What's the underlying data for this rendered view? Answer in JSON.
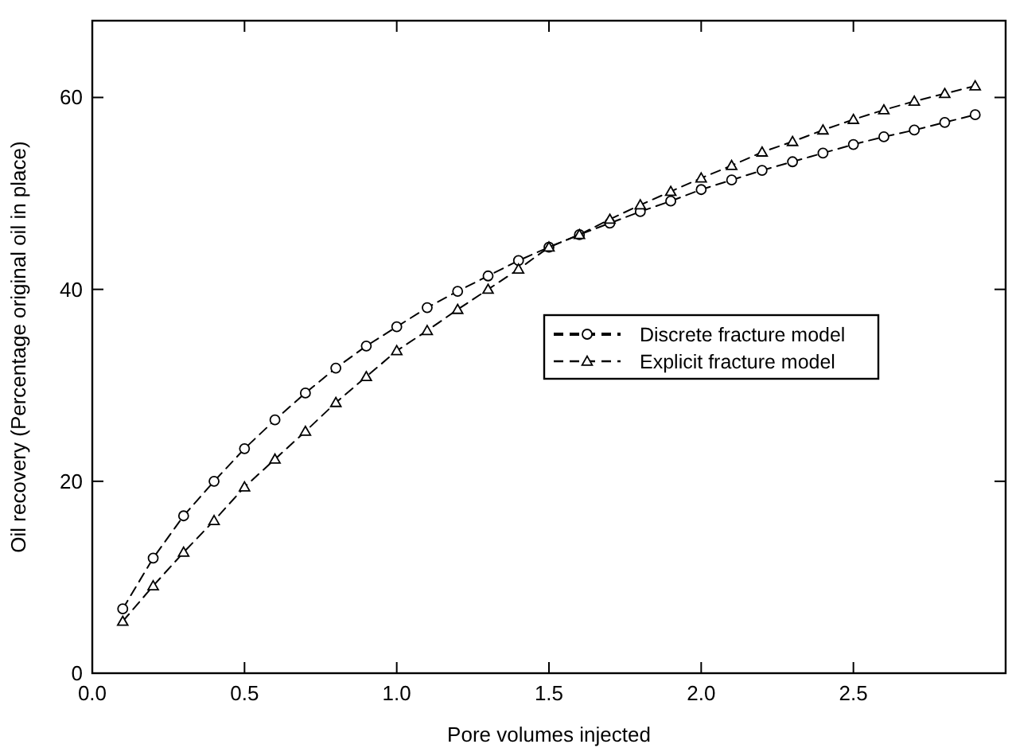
{
  "chart_data": {
    "type": "line",
    "xlabel": "Pore volumes injected",
    "ylabel": "Oil recovery (Percentage original oil in place)",
    "xlim": [
      0,
      3.0
    ],
    "ylim": [
      0,
      68
    ],
    "xticks": [
      {
        "value": 0,
        "label": "0.0"
      },
      {
        "value": 0.5,
        "label": "0.5"
      },
      {
        "value": 1,
        "label": "1.0"
      },
      {
        "value": 1.5,
        "label": "1.5"
      },
      {
        "value": 2,
        "label": "2.0"
      },
      {
        "value": 2.5,
        "label": "2.5"
      }
    ],
    "yticks": [
      0,
      20,
      40,
      60
    ],
    "grid": false,
    "legend": "right",
    "line_style": "dashed",
    "x": [
      0.1,
      0.2,
      0.3,
      0.4,
      0.5,
      0.6,
      0.7,
      0.8,
      0.9,
      1.0,
      1.1,
      1.2,
      1.3,
      1.4,
      1.5,
      1.6,
      1.7,
      1.8,
      1.9,
      2.0,
      2.1,
      2.2,
      2.3,
      2.4,
      2.5,
      2.6,
      2.7,
      2.8,
      2.9
    ],
    "series": [
      {
        "name": "Discrete fracture model",
        "color": "#000000",
        "marker": "circle",
        "values": [
          6.7,
          12.0,
          16.4,
          20.0,
          23.4,
          26.4,
          29.2,
          31.8,
          34.1,
          36.1,
          38.1,
          39.8,
          41.4,
          43.0,
          44.4,
          45.7,
          46.9,
          48.1,
          49.2,
          50.4,
          51.4,
          52.4,
          53.3,
          54.2,
          55.1,
          55.9,
          56.6,
          57.4,
          58.2
        ]
      },
      {
        "name": "Explicit fracture model",
        "color": "#000000",
        "marker": "triangle",
        "values": [
          5.4,
          9.1,
          12.6,
          15.9,
          19.4,
          22.3,
          25.2,
          28.2,
          30.9,
          33.6,
          35.7,
          37.9,
          40.0,
          42.1,
          44.4,
          45.7,
          47.3,
          48.8,
          50.2,
          51.6,
          52.9,
          54.3,
          55.4,
          56.6,
          57.7,
          58.7,
          59.6,
          60.4,
          61.2
        ]
      }
    ]
  }
}
